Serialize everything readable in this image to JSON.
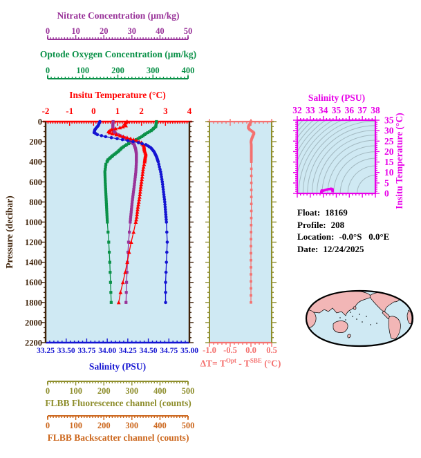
{
  "figure": {
    "plot_bg": "#cfe9f3",
    "contour_color": "#a2b8c0"
  },
  "float_info": {
    "rows": [
      {
        "label": "Float:",
        "value": "18169"
      },
      {
        "label": "Profile:",
        "value": "208"
      },
      {
        "label": "Location:",
        "value": "-0.0°S   0.0°E"
      },
      {
        "label": "Date:",
        "value": "12/24/2025"
      }
    ]
  },
  "chart_data": {
    "type": "line",
    "title": "Float profile plot",
    "axes": {
      "nitrate": {
        "title": "Nitrate Concentration (μm/kg)",
        "color": "#993399",
        "range": [
          0,
          50
        ],
        "ticks": [
          0,
          10,
          20,
          30,
          40,
          50
        ]
      },
      "oxygen": {
        "title": "Optode Oxygen Concentration (μm/kg)",
        "color": "#0a9148",
        "range": [
          0,
          400
        ],
        "ticks": [
          0,
          100,
          200,
          300,
          400
        ]
      },
      "temperature": {
        "title": "Insitu Temperature (°C)",
        "color": "#ff0000",
        "range": [
          -2,
          4
        ],
        "ticks": [
          -2,
          -1,
          0,
          1,
          2,
          3,
          4
        ]
      },
      "pressure": {
        "title": "Pressure (decibar)",
        "color": "#3f2208",
        "range": [
          0,
          2200
        ],
        "ticks": [
          0,
          200,
          400,
          600,
          800,
          1000,
          1200,
          1400,
          1600,
          1800,
          2000,
          2200
        ]
      },
      "salinity": {
        "title": "Salinity (PSU)",
        "color": "#1414d2",
        "range": [
          33.25,
          35.0
        ],
        "ticks": [
          "33.25",
          "33.50",
          "33.75",
          "34.00",
          "34.25",
          "34.50",
          "34.75",
          "35.00"
        ]
      },
      "flbb_fluorescence": {
        "title": "FLBB Fluorescence channel (counts)",
        "color": "#8e8e2d",
        "range": [
          0,
          500
        ],
        "ticks": [
          0,
          100,
          200,
          300,
          400,
          500
        ]
      },
      "flbb_backscatter": {
        "title": "FLBB Backscatter channel (counts)",
        "color": "#cc671d",
        "range": [
          0,
          500
        ],
        "ticks": [
          0,
          100,
          200,
          300,
          400,
          500
        ]
      },
      "delta_t": {
        "title_parts": {
          "t1": "ΔT= T",
          "sup1": "Opt",
          "t2": " - T",
          "sup2": "SBE",
          "t3": " (°C)"
        },
        "color": "#f4716f",
        "side_axis_color": "#8e8e2d",
        "range": [
          -1.0,
          0.5
        ],
        "ticks": [
          "-1.0",
          "-0.5",
          "0.0",
          "0.5"
        ]
      },
      "ts_salinity": {
        "title": "Salinity (PSU)",
        "color": "#e800e8",
        "range": [
          32,
          38
        ],
        "ticks": [
          32,
          33,
          34,
          35,
          36,
          37,
          38
        ]
      },
      "ts_temperature": {
        "title": "Insitu Temperature (°C)",
        "color": "#e800e8",
        "range": [
          0,
          35
        ],
        "ticks": [
          0,
          5,
          10,
          15,
          20,
          25,
          30,
          35
        ]
      }
    },
    "series": [
      {
        "name": "oxygen",
        "units": "μm/kg",
        "color": "#0a9148",
        "marker": "square",
        "x_axis": "oxygen",
        "points": [
          [
            0,
            310
          ],
          [
            50,
            308
          ],
          [
            90,
            295
          ],
          [
            120,
            280
          ],
          [
            150,
            268
          ],
          [
            175,
            255
          ],
          [
            200,
            242
          ],
          [
            230,
            225
          ],
          [
            260,
            212
          ],
          [
            300,
            200
          ],
          [
            340,
            185
          ],
          [
            380,
            172
          ],
          [
            420,
            166
          ],
          [
            500,
            163
          ],
          [
            600,
            164
          ],
          [
            800,
            167
          ],
          [
            1000,
            170
          ],
          [
            1200,
            174
          ],
          [
            1400,
            177
          ],
          [
            1600,
            179
          ],
          [
            1800,
            181
          ]
        ]
      },
      {
        "name": "nitrate",
        "units": "μm/kg",
        "color": "#993399",
        "marker": "square",
        "x_axis": "nitrate",
        "points": [
          [
            0,
            23.3
          ],
          [
            50,
            23.2
          ],
          [
            90,
            23.4
          ],
          [
            120,
            24.3
          ],
          [
            150,
            26.5
          ],
          [
            175,
            28.5
          ],
          [
            200,
            29.8
          ],
          [
            230,
            30.8
          ],
          [
            270,
            31.3
          ],
          [
            320,
            31.6
          ],
          [
            400,
            31.6
          ],
          [
            500,
            31.4
          ],
          [
            600,
            31.0
          ],
          [
            800,
            30.1
          ],
          [
            1000,
            29.4
          ],
          [
            1200,
            28.8
          ],
          [
            1400,
            28.4
          ],
          [
            1600,
            28.1
          ],
          [
            1800,
            27.9
          ]
        ]
      },
      {
        "name": "temperature",
        "units": "°C",
        "color": "#ff0000",
        "marker": "triangle",
        "x_axis": "temperature",
        "points": [
          [
            0,
            1.4
          ],
          [
            20,
            1.3
          ],
          [
            40,
            1.35
          ],
          [
            60,
            1.1
          ],
          [
            80,
            0.75
          ],
          [
            100,
            0.62
          ],
          [
            115,
            0.7
          ],
          [
            130,
            0.95
          ],
          [
            150,
            1.25
          ],
          [
            170,
            1.55
          ],
          [
            190,
            1.8
          ],
          [
            210,
            2.0
          ],
          [
            240,
            2.1
          ],
          [
            280,
            2.12
          ],
          [
            320,
            2.18
          ],
          [
            360,
            2.15
          ],
          [
            400,
            2.13
          ],
          [
            470,
            2.07
          ],
          [
            550,
            2.03
          ],
          [
            650,
            1.97
          ],
          [
            750,
            1.92
          ],
          [
            850,
            1.85
          ],
          [
            950,
            1.8
          ],
          [
            1050,
            1.72
          ],
          [
            1150,
            1.62
          ],
          [
            1250,
            1.52
          ],
          [
            1350,
            1.45
          ],
          [
            1450,
            1.36
          ],
          [
            1550,
            1.28
          ],
          [
            1650,
            1.17
          ],
          [
            1750,
            1.08
          ],
          [
            1800,
            1.05
          ]
        ]
      },
      {
        "name": "salinity",
        "units": "PSU",
        "color": "#1414d2",
        "marker": "circle",
        "x_axis": "salinity",
        "points": [
          [
            0,
            33.91
          ],
          [
            40,
            33.89
          ],
          [
            80,
            33.85
          ],
          [
            110,
            33.84
          ],
          [
            130,
            33.88
          ],
          [
            150,
            33.98
          ],
          [
            170,
            34.12
          ],
          [
            190,
            34.25
          ],
          [
            210,
            34.38
          ],
          [
            230,
            34.47
          ],
          [
            260,
            34.53
          ],
          [
            300,
            34.57
          ],
          [
            350,
            34.6
          ],
          [
            400,
            34.62
          ],
          [
            500,
            34.65
          ],
          [
            600,
            34.67
          ],
          [
            800,
            34.7
          ],
          [
            1000,
            34.72
          ],
          [
            1200,
            34.73
          ],
          [
            1400,
            34.72
          ],
          [
            1600,
            34.71
          ],
          [
            1800,
            34.71
          ]
        ]
      },
      {
        "name": "delta_t",
        "units": "°C",
        "color": "#f4716f",
        "marker": "square",
        "x_axis": "delta_t",
        "points": [
          [
            0,
            0.0
          ],
          [
            20,
            -0.02
          ],
          [
            40,
            -0.05
          ],
          [
            60,
            -0.07
          ],
          [
            80,
            -0.03
          ],
          [
            100,
            0.04
          ],
          [
            115,
            0.08
          ],
          [
            130,
            0.06
          ],
          [
            150,
            0.04
          ],
          [
            170,
            0.02
          ],
          [
            200,
            0.0
          ],
          [
            240,
            0.01
          ],
          [
            300,
            0.01
          ],
          [
            400,
            0.01
          ],
          [
            600,
            0.01
          ],
          [
            900,
            0.01
          ],
          [
            1200,
            0.0
          ],
          [
            1500,
            0.0
          ],
          [
            1800,
            0.0
          ]
        ]
      }
    ],
    "ts_diagram": {
      "curve_color": "#e800e8",
      "contour_color": "#a2b8c0",
      "curve_from": [
        "salinity",
        "temperature"
      ]
    },
    "map": {
      "land_color": "#f2b6b6",
      "ocean_color": "#cfe9f3",
      "outline_color": "#000000"
    }
  }
}
